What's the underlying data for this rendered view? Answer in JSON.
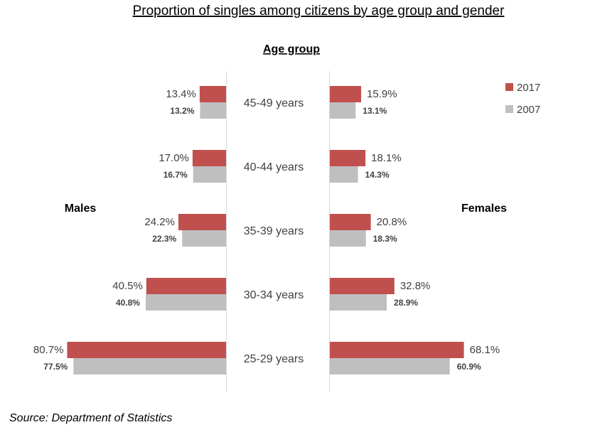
{
  "chart_data": {
    "type": "bar",
    "title": "Proportion of singles among citizens by age group and gender",
    "center_label": "Age group",
    "left_label": "Males",
    "right_label": "Females",
    "source": "Source: Department of Statistics",
    "categories": [
      "45-49 years",
      "40-44 years",
      "35-39 years",
      "30-34 years",
      "25-29 years"
    ],
    "series": [
      {
        "name": "2017",
        "color": "#c0504d",
        "males": [
          13.4,
          17.0,
          24.2,
          40.5,
          80.7
        ],
        "females": [
          15.9,
          18.1,
          20.8,
          32.8,
          68.1
        ]
      },
      {
        "name": "2007",
        "color": "#bfbfbf",
        "males": [
          13.2,
          16.7,
          22.3,
          40.8,
          77.5
        ],
        "females": [
          13.1,
          14.3,
          18.3,
          28.9,
          60.9
        ]
      }
    ],
    "unit": "%",
    "legend_position": "top-right"
  }
}
